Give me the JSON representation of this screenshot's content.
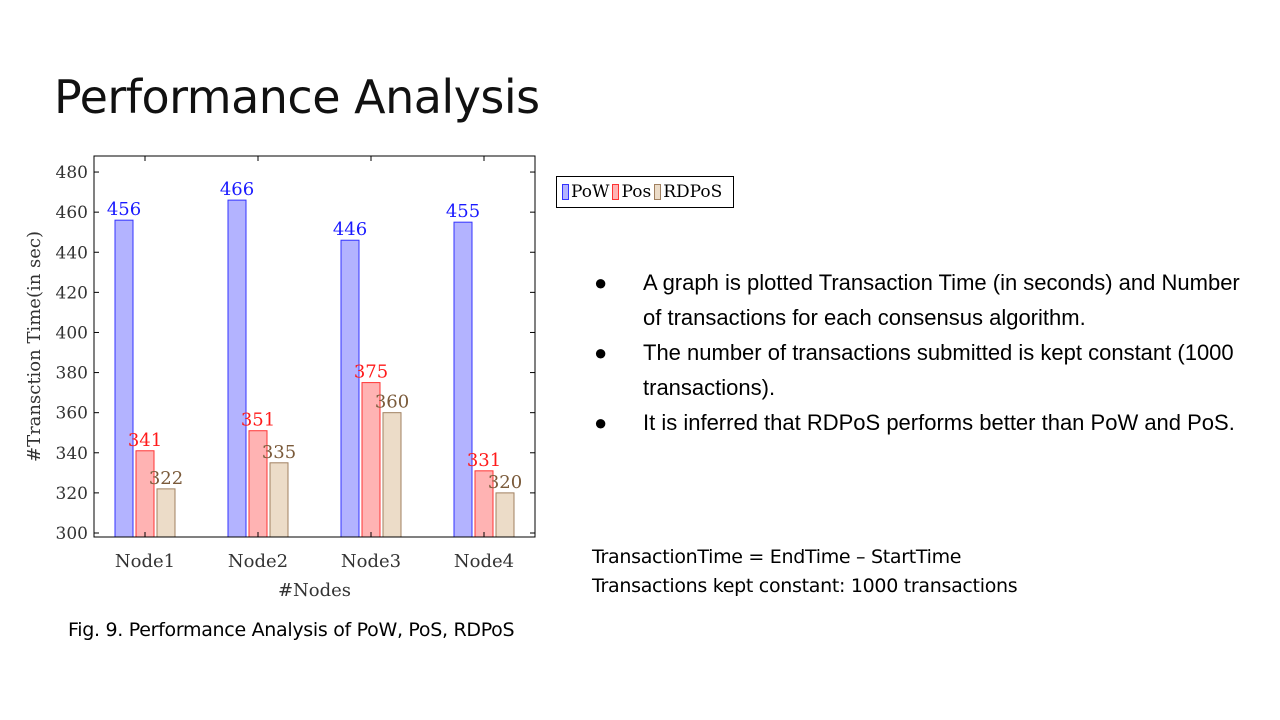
{
  "slide": {
    "title": "Performance Analysis",
    "bullets": [
      {
        "marker": "●",
        "text": "A graph is plotted Transaction Time (in seconds) and Number of transactions for each consensus algorithm."
      },
      {
        "marker": "●",
        "text": "The number of transactions submitted is kept constant (1000 transactions)."
      },
      {
        "marker": "●",
        "text": "It is inferred that RDPoS performs better than PoW and PoS."
      }
    ],
    "formula_lines": [
      "TransactionTime = EndTime – StartTime",
      "Transactions kept constant: 1000 transactions"
    ],
    "caption": "Fig. 9. Performance Analysis of PoW, PoS, RDPoS"
  },
  "chart_data": {
    "type": "bar",
    "categories": [
      "Node1",
      "Node2",
      "Node3",
      "Node4"
    ],
    "series": [
      {
        "name": "PoW",
        "values": [
          456,
          466,
          446,
          455
        ],
        "fill": "#b3b3ff",
        "stroke": "#3333ff",
        "label_color": "#1a1aff"
      },
      {
        "name": "Pos",
        "values": [
          341,
          351,
          375,
          331
        ],
        "fill": "#ffb3b3",
        "stroke": "#ff3333",
        "label_color": "#ff1a1a"
      },
      {
        "name": "RDPoS",
        "values": [
          322,
          335,
          360,
          320
        ],
        "fill": "#ecdcc8",
        "stroke": "#a08060",
        "label_color": "#7a5a3a"
      }
    ],
    "xlabel": "#Nodes",
    "ylabel": "#Transction Time(in sec)",
    "ylim": [
      298,
      488
    ],
    "yticks": [
      300,
      320,
      340,
      360,
      380,
      400,
      420,
      440,
      460,
      480
    ],
    "grid": false,
    "legend_position": "outside-right-top"
  }
}
